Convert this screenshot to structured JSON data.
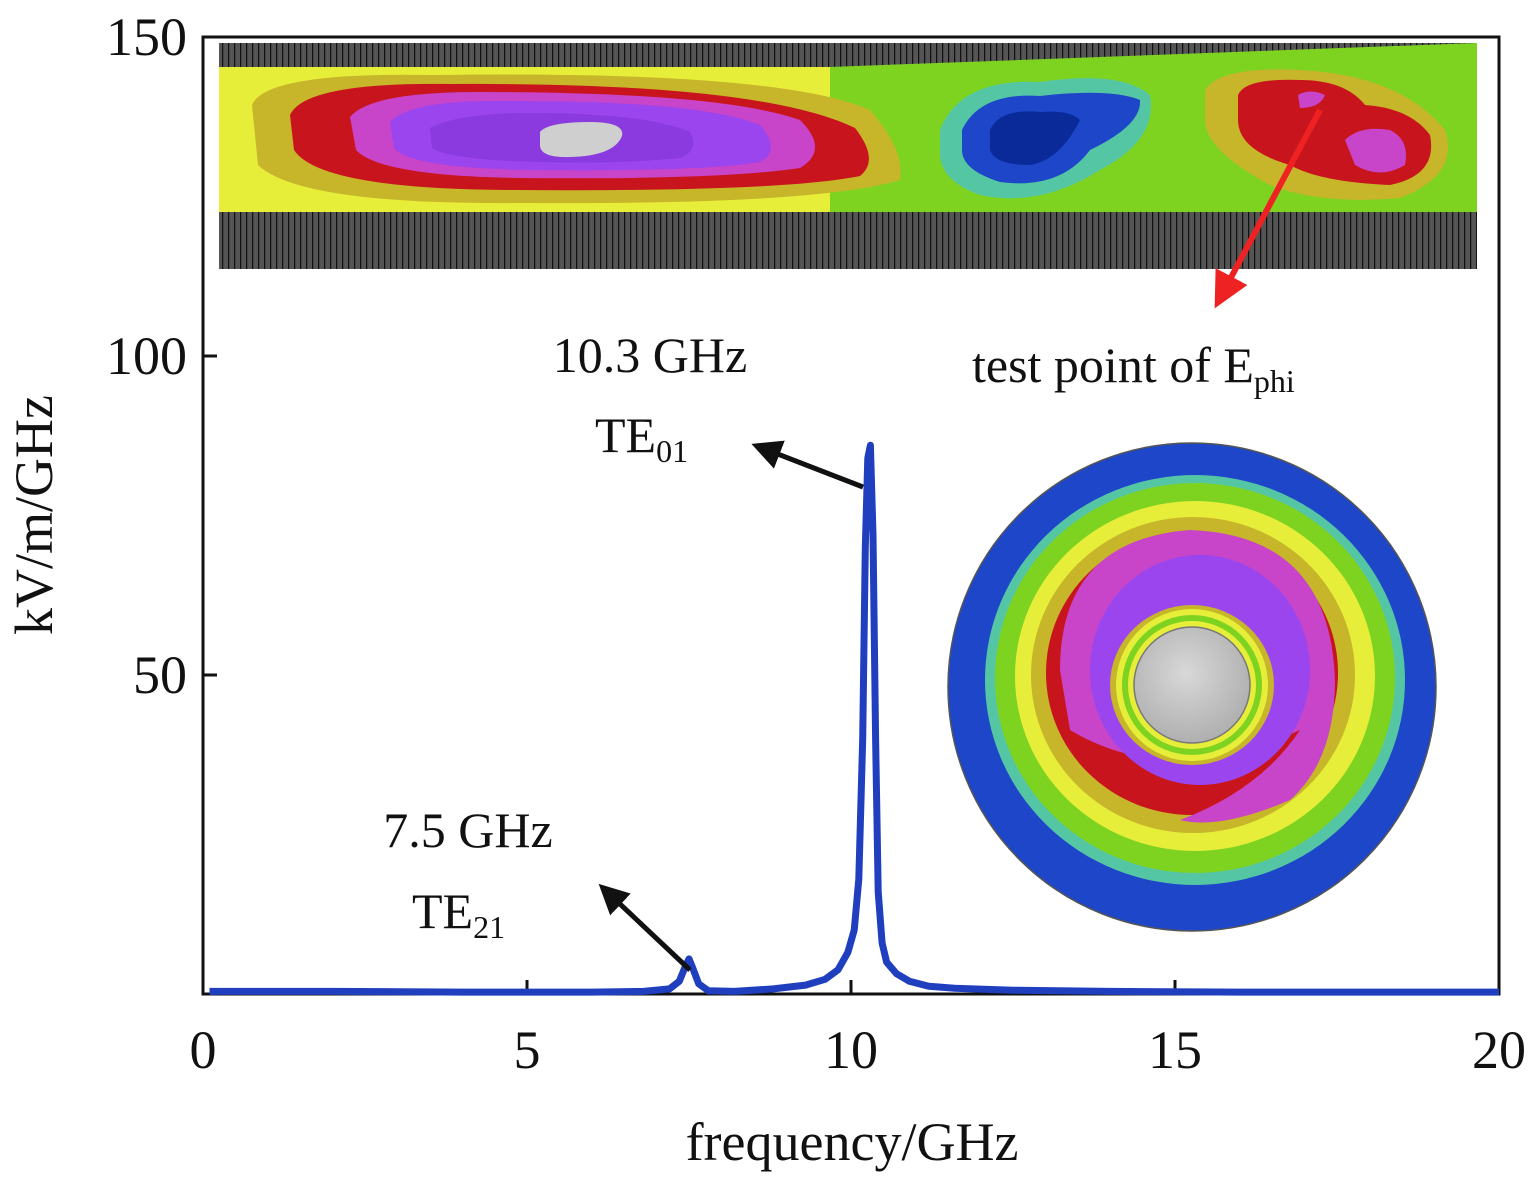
{
  "chart_data": {
    "type": "line",
    "title": "",
    "xlabel": "frequency/GHz",
    "ylabel": "kV/m/GHz",
    "xlim": [
      0,
      20
    ],
    "ylim": [
      0,
      150
    ],
    "grid": false,
    "x_ticks": [
      "0",
      "5",
      "10",
      "15",
      "20"
    ],
    "y_ticks": [
      "50",
      "100",
      "150"
    ],
    "series": [
      {
        "color": "#1f3fbf",
        "x": [
          0.1,
          2,
          4,
          6,
          6.8,
          7.2,
          7.35,
          7.45,
          7.5,
          7.55,
          7.65,
          7.8,
          8.2,
          8.8,
          9.3,
          9.6,
          9.8,
          9.95,
          10.05,
          10.12,
          10.18,
          10.22,
          10.26,
          10.3,
          10.34,
          10.38,
          10.42,
          10.48,
          10.55,
          10.7,
          10.9,
          11.2,
          11.6,
          12.5,
          14,
          16,
          18,
          20
        ],
        "y": [
          0.4,
          0.4,
          0.3,
          0.3,
          0.4,
          0.8,
          2.0,
          4.5,
          5.5,
          4.3,
          1.6,
          0.5,
          0.4,
          0.8,
          1.4,
          2.3,
          3.8,
          6.5,
          10,
          18,
          40,
          70,
          84,
          86,
          72,
          40,
          16,
          8,
          5,
          3.2,
          2,
          1.2,
          0.9,
          0.6,
          0.4,
          0.3,
          0.3,
          0.3
        ]
      }
    ],
    "annotations": [
      {
        "freq": "10.3 GHz",
        "mode": "TE",
        "mode_sub": "01",
        "x": 10.3,
        "y": 84
      },
      {
        "freq": "7.5 GHz",
        "mode": "TE",
        "mode_sub": "21",
        "x": 7.5,
        "y": 5
      },
      {
        "text": "test point of E",
        "text_sub": "phi"
      }
    ]
  }
}
